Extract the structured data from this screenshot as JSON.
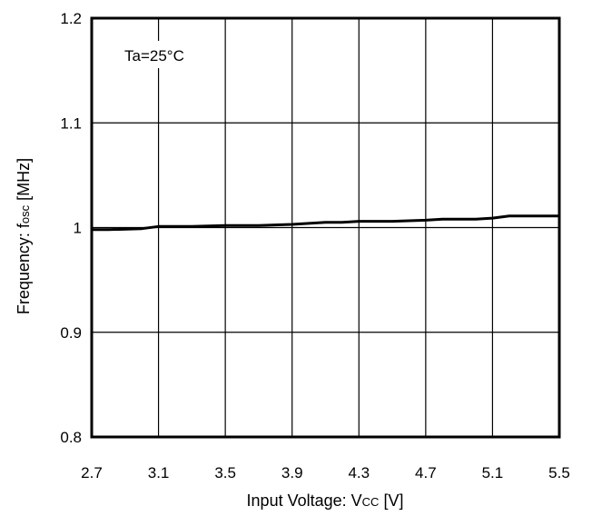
{
  "chart_data": {
    "type": "line",
    "annotation": "Ta=25°C",
    "xlabel": {
      "main": "Input Voltage: V",
      "sub": "CC",
      "unit": " [V]"
    },
    "ylabel": {
      "main": "Frequency: f",
      "sub": "osc",
      "unit": " [MHz]"
    },
    "xlim": [
      2.7,
      5.5
    ],
    "ylim": [
      0.8,
      1.2
    ],
    "x_ticks": [
      "2.7",
      "3.1",
      "3.5",
      "3.9",
      "4.3",
      "4.7",
      "5.1",
      "5.5"
    ],
    "y_ticks": [
      "1.2",
      "1.1",
      "1",
      "0.9",
      "0.8"
    ],
    "grid": true,
    "series": [
      {
        "x": [
          2.7,
          2.8,
          3.0,
          3.1,
          3.3,
          3.5,
          3.7,
          3.9,
          4.0,
          4.1,
          4.2,
          4.3,
          4.5,
          4.7,
          4.8,
          5.0,
          5.1,
          5.2,
          5.3,
          5.5
        ],
        "y": [
          0.998,
          0.998,
          0.999,
          1.001,
          1.001,
          1.002,
          1.002,
          1.003,
          1.004,
          1.005,
          1.005,
          1.006,
          1.006,
          1.007,
          1.008,
          1.008,
          1.009,
          1.011,
          1.011,
          1.011
        ]
      }
    ]
  }
}
